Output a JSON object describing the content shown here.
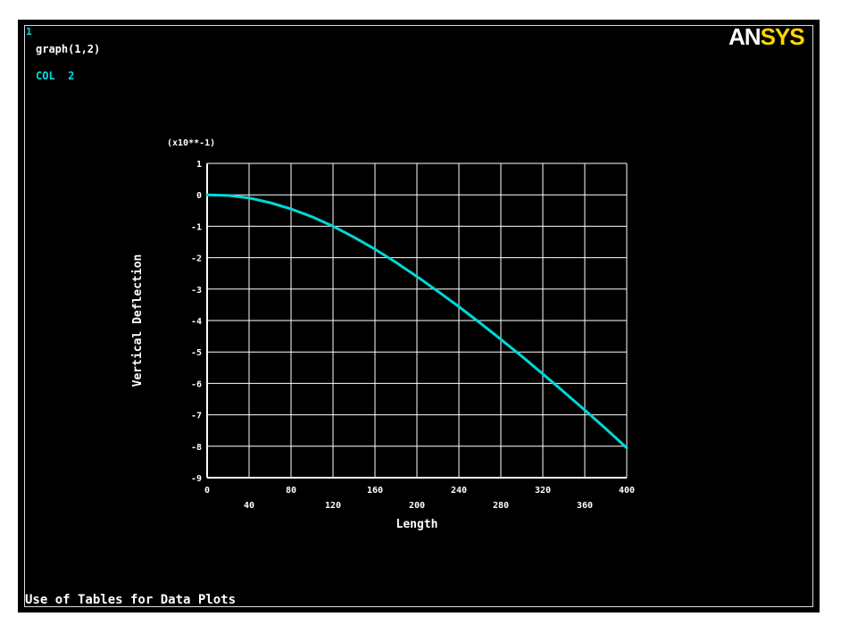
{
  "window": {
    "number": "1",
    "graph_name": "graph(1,2)",
    "column_label": "COL  2",
    "caption": "Use of Tables for Data Plots"
  },
  "logo": {
    "part1": "AN",
    "part2": "SYS"
  },
  "colors": {
    "background": "#000000",
    "curve": "#00d8d8",
    "grid": "#ffffff",
    "text": "#ffffff",
    "logo_accent": "#ffd700"
  },
  "chart_data": {
    "type": "line",
    "title": "",
    "xlabel": "Length",
    "ylabel": "Vertical Deflection",
    "y_multiplier_label": "(x10**-1)",
    "xlim": [
      0,
      400
    ],
    "ylim": [
      -9,
      1
    ],
    "x_tick_labels": [
      "0",
      "40",
      "80",
      "120",
      "160",
      "200",
      "240",
      "280",
      "320",
      "360",
      "400"
    ],
    "y_tick_labels": [
      "1",
      "0",
      "-1",
      "-2",
      "-3",
      "-4",
      "-5",
      "-6",
      "-7",
      "-8",
      "-9"
    ],
    "grid": true,
    "series": [
      {
        "x": [
          0,
          20,
          40,
          60,
          80,
          100,
          120,
          140,
          160,
          180,
          200,
          220,
          240,
          260,
          280,
          300,
          320,
          340,
          360,
          380,
          400
        ],
        "values": [
          0,
          -0.02,
          -0.1,
          -0.25,
          -0.45,
          -0.7,
          -1.0,
          -1.35,
          -1.73,
          -2.15,
          -2.6,
          -3.07,
          -3.56,
          -4.07,
          -4.6,
          -5.14,
          -5.7,
          -6.27,
          -6.85,
          -7.44,
          -8.05
        ]
      }
    ]
  }
}
